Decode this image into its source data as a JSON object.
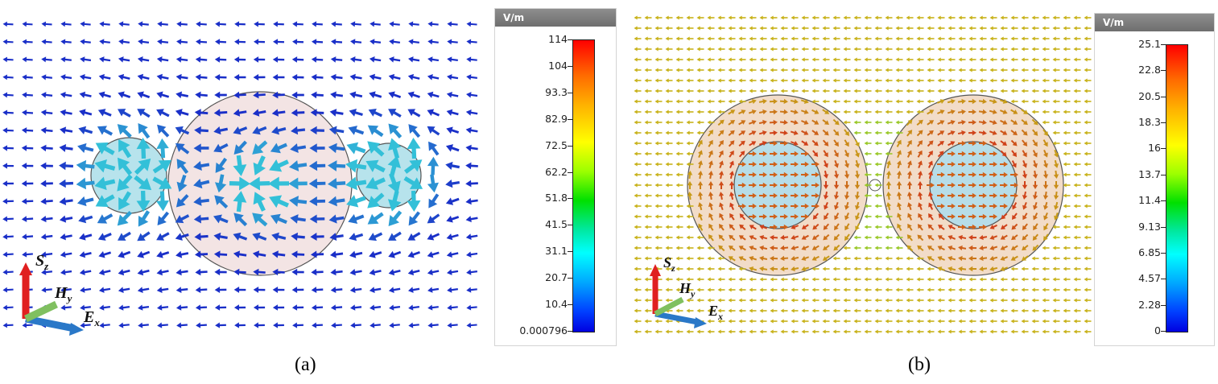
{
  "panels": [
    {
      "id": "a",
      "caption": "(a)",
      "unit": "V/m",
      "ticks": [
        "114",
        "104",
        "93.3",
        "82.9",
        "72.5",
        "62.2",
        "51.8",
        "41.5",
        "31.1",
        "20.7",
        "10.4",
        "0.000796"
      ],
      "axes": {
        "z": "S",
        "z_sub": "z",
        "y": "H",
        "y_sub": "y",
        "x": "E",
        "x_sub": "x"
      },
      "colors": {
        "arrow": "#1a2fc8",
        "sphere_fill": "#f3e4e4",
        "core_fill": "#b7e3ec"
      }
    },
    {
      "id": "b",
      "caption": "(b)",
      "unit": "V/m",
      "ticks": [
        "25.1",
        "22.8",
        "20.5",
        "18.3",
        "16",
        "13.7",
        "11.4",
        "9.13",
        "6.85",
        "4.57",
        "2.28",
        "0"
      ],
      "axes": {
        "z": "S",
        "z_sub": "z",
        "y": "H",
        "y_sub": "y",
        "x": "E",
        "x_sub": "x"
      },
      "colors": {
        "arrow": "#c8b21a",
        "sphere_fill": "#f2dcc8",
        "core_fill": "#b7dde8"
      }
    }
  ]
}
